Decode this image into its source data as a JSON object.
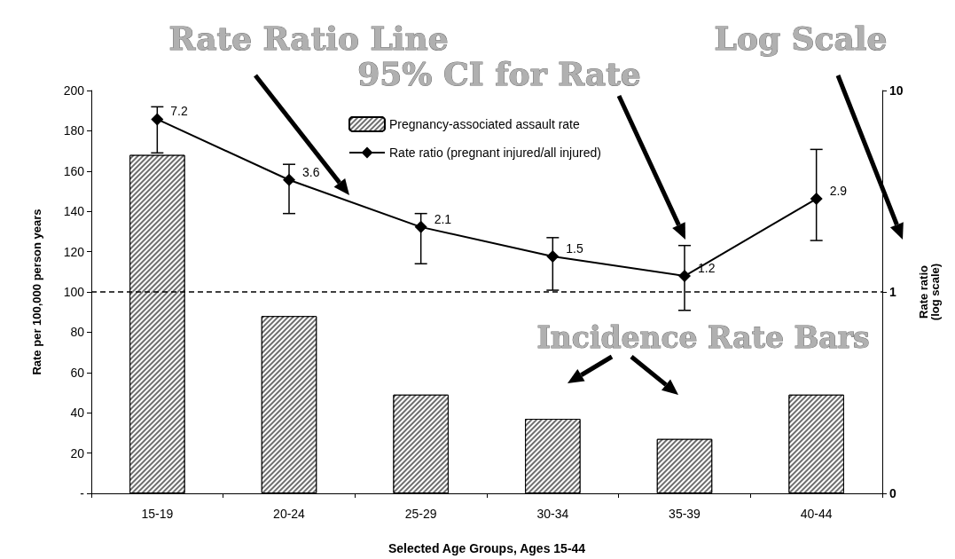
{
  "chart_data": {
    "type": "bar",
    "categories": [
      "15-19",
      "20-24",
      "25-29",
      "30-34",
      "35-39",
      "40-44"
    ],
    "xlabel": "Selected Age Groups, Ages 15-44",
    "ylabel": "Rate per 100,000 person years",
    "y2label": "Rate ratio\n(log scale)",
    "series": [
      {
        "name": "Pregnancy-associated assault rate",
        "color": "#6e6e6e",
        "values": [
          168,
          88,
          49,
          37,
          27,
          49
        ]
      },
      {
        "name": "Rate ratio (pregnant injured/all injured)",
        "type": "line",
        "axis": "y2",
        "color": "#000000",
        "marker": "diamond",
        "values": [
          7.2,
          3.6,
          2.1,
          1.5,
          1.2,
          2.9
        ],
        "value_labels": [
          "7.2",
          "3.6",
          "2.1",
          "1.5",
          "1.2",
          "2.9"
        ],
        "errors": [
          [
            4.9,
            8.3
          ],
          [
            2.45,
            4.3
          ],
          [
            1.38,
            2.45
          ],
          [
            1.02,
            1.86
          ],
          [
            0.81,
            1.7
          ],
          [
            1.8,
            5.1
          ]
        ]
      }
    ],
    "ylim": [
      0,
      200
    ],
    "yticks": [
      {
        "value": 0,
        "label": "-"
      },
      20,
      40,
      60,
      80,
      100,
      120,
      140,
      160,
      180,
      200
    ],
    "y2lim": [
      0.1,
      10
    ],
    "y2ticks": [
      {
        "value": 0.1,
        "label": "0"
      },
      1,
      10
    ],
    "log": "y2",
    "ref_lines": [
      {
        "axis": "y",
        "value": 100,
        "color": "#000000",
        "line_style": "dashed"
      }
    ],
    "legend": "top right",
    "grid": false,
    "annotations": [
      "Rate Ratio Line",
      "Log Scale",
      "95% CI for Rate",
      "Incidence Rate Bars"
    ]
  }
}
